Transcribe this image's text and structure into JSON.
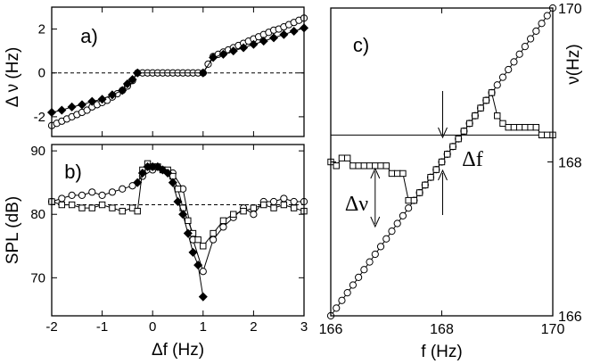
{
  "chart_data": [
    {
      "id": "a",
      "type": "line",
      "panel_label": "a)",
      "ylabel": "Δ ν (Hz)",
      "xlim": [
        -2,
        3
      ],
      "ylim": [
        -2.9,
        3.0
      ],
      "yticks": [
        -2,
        0,
        2
      ],
      "xticks": [
        -2,
        -1,
        0,
        1,
        2,
        3
      ],
      "reference_line": 0,
      "series": [
        {
          "marker": "circle-open",
          "x": [
            -2.0,
            -1.9,
            -1.8,
            -1.7,
            -1.6,
            -1.5,
            -1.4,
            -1.3,
            -1.2,
            -1.1,
            -1.0,
            -0.9,
            -0.8,
            -0.7,
            -0.6,
            -0.5,
            -0.4,
            -0.3,
            -0.2,
            -0.1,
            0.0,
            0.1,
            0.2,
            0.3,
            0.4,
            0.5,
            0.6,
            0.7,
            0.8,
            0.9,
            1.0,
            1.1,
            1.2,
            1.3,
            1.4,
            1.5,
            1.6,
            1.7,
            1.8,
            1.9,
            2.0,
            2.1,
            2.2,
            2.3,
            2.4,
            2.5,
            2.6,
            2.7,
            2.8,
            2.9,
            3.0
          ],
          "y": [
            -2.4,
            -2.3,
            -2.2,
            -2.1,
            -2.0,
            -1.9,
            -1.8,
            -1.7,
            -1.55,
            -1.45,
            -1.35,
            -1.25,
            -1.1,
            -0.95,
            -0.8,
            -0.6,
            -0.35,
            0.0,
            0.0,
            0.0,
            0.0,
            0.0,
            0.0,
            0.0,
            0.0,
            0.0,
            0.0,
            0.0,
            0.0,
            0.0,
            0.0,
            0.4,
            0.75,
            0.85,
            0.95,
            1.05,
            1.15,
            1.25,
            1.35,
            1.45,
            1.55,
            1.65,
            1.75,
            1.85,
            1.95,
            2.0,
            2.1,
            2.2,
            2.3,
            2.4,
            2.5
          ]
        },
        {
          "marker": "diamond-filled",
          "x": [
            -2.0,
            -1.8,
            -1.6,
            -1.4,
            -1.2,
            -1.0,
            -0.8,
            -0.6,
            -0.5,
            -0.4,
            -0.3,
            1.0,
            1.2,
            1.4,
            1.6,
            1.8,
            2.0,
            2.2,
            2.4,
            2.6,
            2.8,
            3.0
          ],
          "y": [
            -1.8,
            -1.7,
            -1.55,
            -1.45,
            -1.3,
            -1.2,
            -1.0,
            -0.8,
            -0.5,
            -0.3,
            0.0,
            0.0,
            0.7,
            0.85,
            1.0,
            1.15,
            1.3,
            1.45,
            1.6,
            1.75,
            1.9,
            2.05
          ]
        }
      ]
    },
    {
      "id": "b",
      "type": "line",
      "panel_label": "b)",
      "xlabel": "Δf (Hz)",
      "ylabel": "SPL (dB)",
      "xlim": [
        -2,
        3
      ],
      "ylim": [
        64,
        91
      ],
      "yticks": [
        70,
        80,
        90
      ],
      "xticks": [
        -2,
        -1,
        0,
        1,
        2,
        3
      ],
      "reference_line": 81.5,
      "series": [
        {
          "marker": "circle-open",
          "x": [
            -2.0,
            -1.8,
            -1.6,
            -1.4,
            -1.2,
            -1.0,
            -0.8,
            -0.6,
            -0.4,
            -0.2,
            0.0,
            0.2,
            0.4,
            0.6,
            0.8,
            1.0,
            1.2,
            1.4,
            1.6,
            1.8,
            2.0,
            2.2,
            2.4,
            2.6,
            2.8,
            3.0
          ],
          "y": [
            82,
            82.5,
            83,
            83,
            83.5,
            83,
            83.5,
            84,
            84.5,
            86,
            87,
            87,
            86.5,
            84,
            76,
            71,
            76,
            78,
            79.5,
            81,
            80,
            82,
            82,
            82.5,
            82,
            82
          ]
        },
        {
          "marker": "square-open",
          "x": [
            -2.0,
            -1.8,
            -1.6,
            -1.4,
            -1.2,
            -1.0,
            -0.8,
            -0.6,
            -0.4,
            -0.3,
            -0.2,
            -0.1,
            0.0,
            0.1,
            0.2,
            0.3,
            0.4,
            0.5,
            0.6,
            0.7,
            0.8,
            0.9,
            1.0,
            1.2,
            1.4,
            1.6,
            1.8,
            2.0,
            2.2,
            2.4,
            2.6,
            2.8,
            3.0
          ],
          "y": [
            82,
            81.5,
            81.5,
            81,
            81,
            81.5,
            81,
            80.5,
            81,
            80.5,
            87,
            88,
            87.5,
            87.5,
            87,
            87,
            86,
            84,
            81,
            79,
            77,
            76,
            75,
            77,
            79,
            80,
            80.5,
            81,
            81.5,
            81,
            81.5,
            81,
            80.5
          ]
        },
        {
          "marker": "diamond-filled",
          "x": [
            -0.3,
            -0.2,
            -0.1,
            0.0,
            0.1,
            0.2,
            0.3,
            0.4,
            0.5,
            0.6,
            0.7,
            0.8,
            0.9,
            1.0
          ],
          "y": [
            85,
            86.5,
            87.5,
            87.5,
            87.5,
            87,
            86.5,
            85,
            82,
            80,
            77,
            74,
            72,
            67
          ]
        }
      ]
    },
    {
      "id": "c",
      "type": "line",
      "panel_label": "c)",
      "xlabel": "f (Hz)",
      "ylabel": "ν(Hz)",
      "xlim": [
        166,
        170
      ],
      "ylim": [
        166,
        170
      ],
      "xticks": [
        166,
        168,
        170
      ],
      "yticks": [
        166,
        168,
        170
      ],
      "horizontal_line": 168.35,
      "annotations": [
        "Δf",
        "Δν"
      ],
      "series": [
        {
          "marker": "circle-open",
          "x": [
            166.0,
            166.1,
            166.2,
            166.3,
            166.4,
            166.5,
            166.6,
            166.7,
            166.8,
            166.9,
            167.0,
            167.1,
            167.2,
            167.3,
            167.4,
            167.5,
            167.6,
            167.7,
            167.8,
            167.9,
            168.0,
            168.1,
            168.2,
            168.3,
            168.4,
            168.5,
            168.6,
            168.7,
            168.8,
            168.9,
            169.0,
            169.1,
            169.2,
            169.3,
            169.4,
            169.5,
            169.6,
            169.7,
            169.8,
            169.9,
            170.0
          ],
          "y": [
            166.0,
            166.1,
            166.2,
            166.3,
            166.4,
            166.5,
            166.6,
            166.7,
            166.8,
            166.9,
            167.0,
            167.1,
            167.2,
            167.3,
            167.4,
            167.5,
            167.6,
            167.7,
            167.8,
            167.9,
            168.0,
            168.1,
            168.2,
            168.3,
            168.4,
            168.5,
            168.6,
            168.7,
            168.8,
            168.9,
            169.0,
            169.1,
            169.2,
            169.3,
            169.4,
            169.5,
            169.6,
            169.7,
            169.8,
            169.9,
            170.0
          ]
        },
        {
          "marker": "square-open",
          "x": [
            166.0,
            166.1,
            166.2,
            166.3,
            166.4,
            166.5,
            166.6,
            166.7,
            166.8,
            166.9,
            167.0,
            167.1,
            167.2,
            167.3,
            167.4,
            167.5,
            167.6,
            167.7,
            167.8,
            167.9,
            168.0,
            168.1,
            168.2,
            168.3,
            168.4,
            168.5,
            168.6,
            168.7,
            168.8,
            168.9,
            169.0,
            169.1,
            169.2,
            169.3,
            169.4,
            169.5,
            169.6,
            169.7,
            169.8,
            169.9,
            170.0
          ],
          "y": [
            168.0,
            167.95,
            168.05,
            168.05,
            167.95,
            167.95,
            167.95,
            167.95,
            167.95,
            167.95,
            167.95,
            167.85,
            167.85,
            167.85,
            167.5,
            167.5,
            167.6,
            167.7,
            167.8,
            167.9,
            168.0,
            168.1,
            168.2,
            168.3,
            168.4,
            168.5,
            168.6,
            168.7,
            168.8,
            168.9,
            168.6,
            168.5,
            168.45,
            168.45,
            168.45,
            168.45,
            168.45,
            168.45,
            168.35,
            168.35,
            168.35
          ]
        }
      ]
    }
  ]
}
